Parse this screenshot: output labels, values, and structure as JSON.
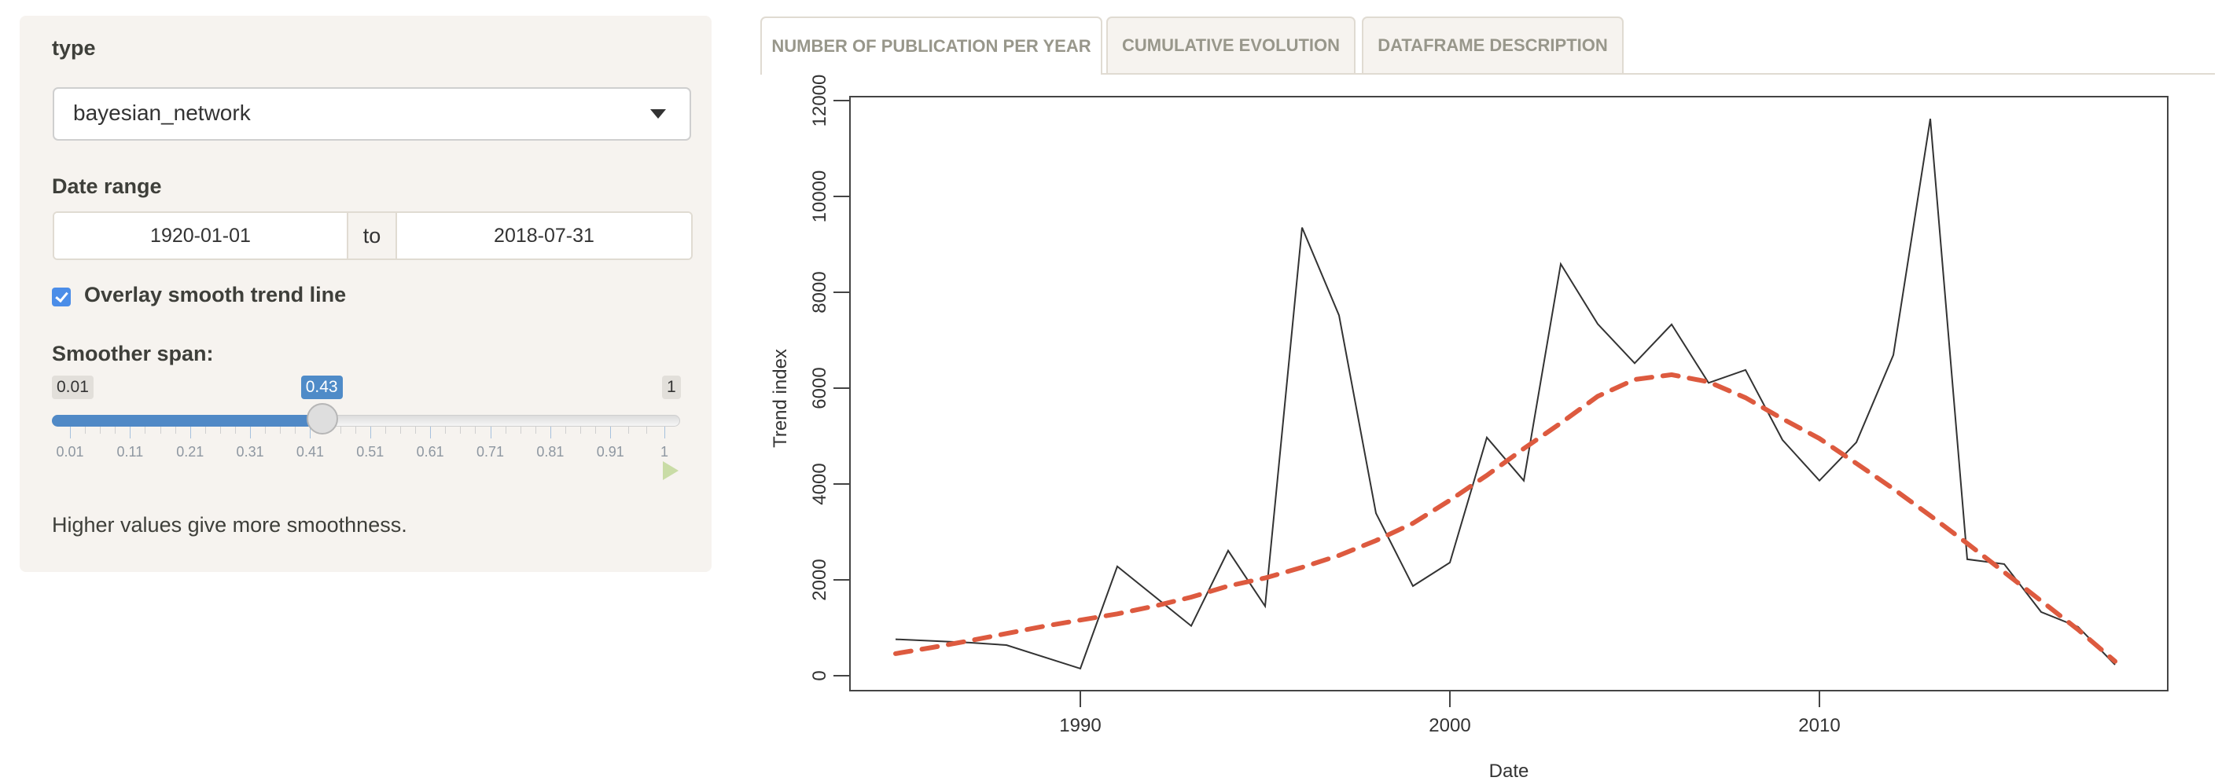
{
  "sidebar": {
    "type_label": "type",
    "type_value": "bayesian_network",
    "date_range_label": "Date range",
    "date_start": "1920-01-01",
    "date_separator": "to",
    "date_end": "2018-07-31",
    "overlay_label": "Overlay smooth trend line",
    "overlay_checked": true,
    "smoother_label": "Smoother span:",
    "slider": {
      "min": 0.01,
      "max": 1,
      "value": 0.43,
      "min_label": "0.01",
      "max_label": "1",
      "value_label": "0.43",
      "grid_labels": [
        "0.01",
        "0.11",
        "0.21",
        "0.31",
        "0.41",
        "0.51",
        "0.61",
        "0.71",
        "0.81",
        "0.91",
        "1"
      ]
    },
    "help_text": "Higher values give more smoothness."
  },
  "tabs": [
    {
      "label": "NUMBER OF PUBLICATION PER YEAR",
      "active": true
    },
    {
      "label": "CUMULATIVE EVOLUTION",
      "active": false
    },
    {
      "label": "DATAFRAME DESCRIPTION",
      "active": false
    }
  ],
  "colors": {
    "accent": "#4f8bc8",
    "checkbox": "#4b8de8",
    "trend_line": "#333333",
    "smooth_line": "#dd5a3f"
  },
  "chart_data": {
    "type": "line",
    "title": "",
    "xlabel": "Date",
    "ylabel": "Trend index",
    "xlim": [
      1983.7,
      2019.3
    ],
    "ylim": [
      0,
      12000
    ],
    "x_ticks": [
      1990,
      2000,
      2010
    ],
    "x_tick_labels": [
      "1990",
      "2000",
      "2010"
    ],
    "y_ticks": [
      0,
      2000,
      4000,
      6000,
      8000,
      10000,
      12000
    ],
    "y_tick_labels": [
      "0",
      "2000",
      "4000",
      "6000",
      "8000",
      "10000",
      "12000"
    ],
    "grid": false,
    "series": [
      {
        "name": "Trend index",
        "style": "solid",
        "x": [
          1985,
          1987,
          1988,
          1990,
          1991,
          1993,
          1994,
          1995,
          1996,
          1997,
          1998,
          1999,
          2000,
          2001,
          2002,
          2003,
          2004,
          2005,
          2006,
          2007,
          2008,
          2009,
          2010,
          2011,
          2012,
          2013,
          2014,
          2015,
          2016,
          2017,
          2018
        ],
        "y": [
          760,
          690,
          640,
          150,
          2280,
          1040,
          2610,
          1450,
          9350,
          7520,
          3390,
          1870,
          2360,
          4970,
          4070,
          8590,
          7340,
          6520,
          7330,
          6110,
          6380,
          4920,
          4070,
          4870,
          6690,
          11620,
          2430,
          2330,
          1330,
          1020,
          230
        ]
      },
      {
        "name": "Smooth trend",
        "style": "dashed",
        "x": [
          1985,
          1986,
          1987,
          1988,
          1989,
          1990,
          1991,
          1992,
          1993,
          1994,
          1995,
          1996,
          1997,
          1998,
          1999,
          2000,
          2001,
          2002,
          2003,
          2004,
          2005,
          2006,
          2007,
          2008,
          2009,
          2010,
          2011,
          2012,
          2013,
          2014,
          2015,
          2016,
          2017,
          2018
        ],
        "y": [
          460,
          590,
          730,
          880,
          1030,
          1160,
          1290,
          1450,
          1640,
          1870,
          2040,
          2260,
          2510,
          2820,
          3180,
          3660,
          4180,
          4740,
          5270,
          5830,
          6180,
          6280,
          6130,
          5800,
          5360,
          4950,
          4430,
          3900,
          3340,
          2760,
          2160,
          1560,
          960,
          300
        ]
      }
    ]
  }
}
